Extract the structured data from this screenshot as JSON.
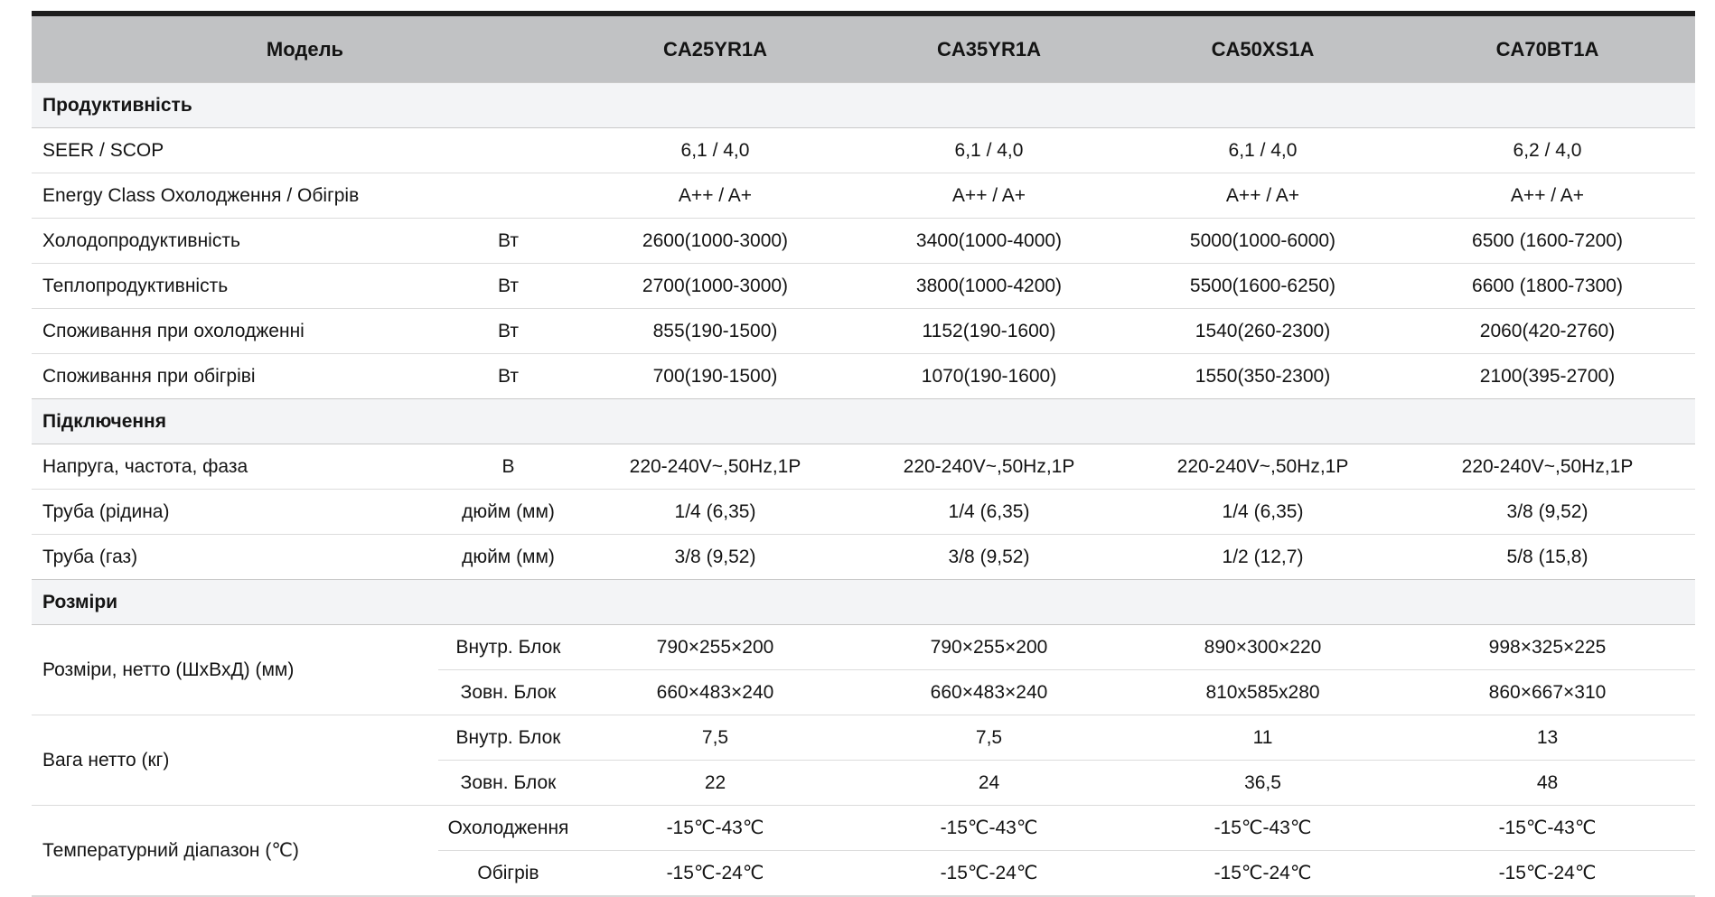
{
  "table": {
    "header": {
      "model_label": "Модель",
      "models": [
        "CA25YR1A",
        "CA35YR1A",
        "CA50XS1A",
        "CA70BT1A"
      ]
    },
    "sections": [
      {
        "title": "Продуктивність",
        "rows": [
          {
            "label": "SEER / SCOP",
            "unit": "",
            "values": [
              "6,1 / 4,0",
              "6,1 / 4,0",
              "6,1 / 4,0",
              "6,2 / 4,0"
            ]
          },
          {
            "label": "Energy Class Охолодження / Обігрів",
            "unit": "",
            "values": [
              "A++ / A+",
              "A++ / A+",
              "A++ / A+",
              "A++ / A+"
            ]
          },
          {
            "label": "Холодопродуктивність",
            "unit": "Вт",
            "values": [
              "2600(1000-3000)",
              "3400(1000-4000)",
              "5000(1000-6000)",
              "6500 (1600-7200)"
            ]
          },
          {
            "label": "Теплопродуктивність",
            "unit": "Вт",
            "values": [
              "2700(1000-3000)",
              "3800(1000-4200)",
              "5500(1600-6250)",
              "6600 (1800-7300)"
            ]
          },
          {
            "label": "Споживання при охолодженні",
            "unit": "Вт",
            "values": [
              "855(190-1500)",
              "1152(190-1600)",
              "1540(260-2300)",
              "2060(420-2760)"
            ]
          },
          {
            "label": "Споживання при обігріві",
            "unit": "Вт",
            "values": [
              "700(190-1500)",
              "1070(190-1600)",
              "1550(350-2300)",
              "2100(395-2700)"
            ]
          }
        ]
      },
      {
        "title": "Підключення",
        "rows": [
          {
            "label": "Напруга, частота, фаза",
            "unit": "В",
            "values": [
              "220-240V~,50Hz,1P",
              "220-240V~,50Hz,1P",
              "220-240V~,50Hz,1P",
              "220-240V~,50Hz,1P"
            ]
          },
          {
            "label": "Труба (рідина)",
            "unit": "дюйм (мм)",
            "values": [
              "1/4 (6,35)",
              "1/4 (6,35)",
              "1/4 (6,35)",
              "3/8 (9,52)"
            ]
          },
          {
            "label": "Труба (газ)",
            "unit": "дюйм (мм)",
            "values": [
              "3/8 (9,52)",
              "3/8 (9,52)",
              "1/2 (12,7)",
              "5/8 (15,8)"
            ]
          }
        ]
      },
      {
        "title": "Розміри",
        "rows": [
          {
            "label": "Розміри, нетто (ШхВхД) (мм)",
            "rowspan": 2,
            "unit": "Внутр. Блок",
            "values": [
              "790×255×200",
              "790×255×200",
              "890×300×220",
              "998×325×225"
            ]
          },
          {
            "label": null,
            "unit": "Зовн. Блок",
            "values": [
              "660×483×240",
              "660×483×240",
              "810x585x280",
              "860×667×310"
            ]
          },
          {
            "label": "Вага нетто (кг)",
            "rowspan": 2,
            "unit": "Внутр. Блок",
            "values": [
              "7,5",
              "7,5",
              "11",
              "13"
            ]
          },
          {
            "label": null,
            "unit": "Зовн. Блок",
            "values": [
              "22",
              "24",
              "36,5",
              "48"
            ]
          },
          {
            "label": "Температурний діапазон (℃)",
            "rowspan": 2,
            "unit": "Охолодження",
            "values": [
              "-15℃-43℃",
              "-15℃-43℃",
              "-15℃-43℃",
              "-15℃-43℃"
            ]
          },
          {
            "label": null,
            "unit": "Обігрів",
            "values": [
              "-15℃-24℃",
              "-15℃-24℃",
              "-15℃-24℃",
              "-15℃-24℃"
            ]
          }
        ]
      }
    ]
  }
}
